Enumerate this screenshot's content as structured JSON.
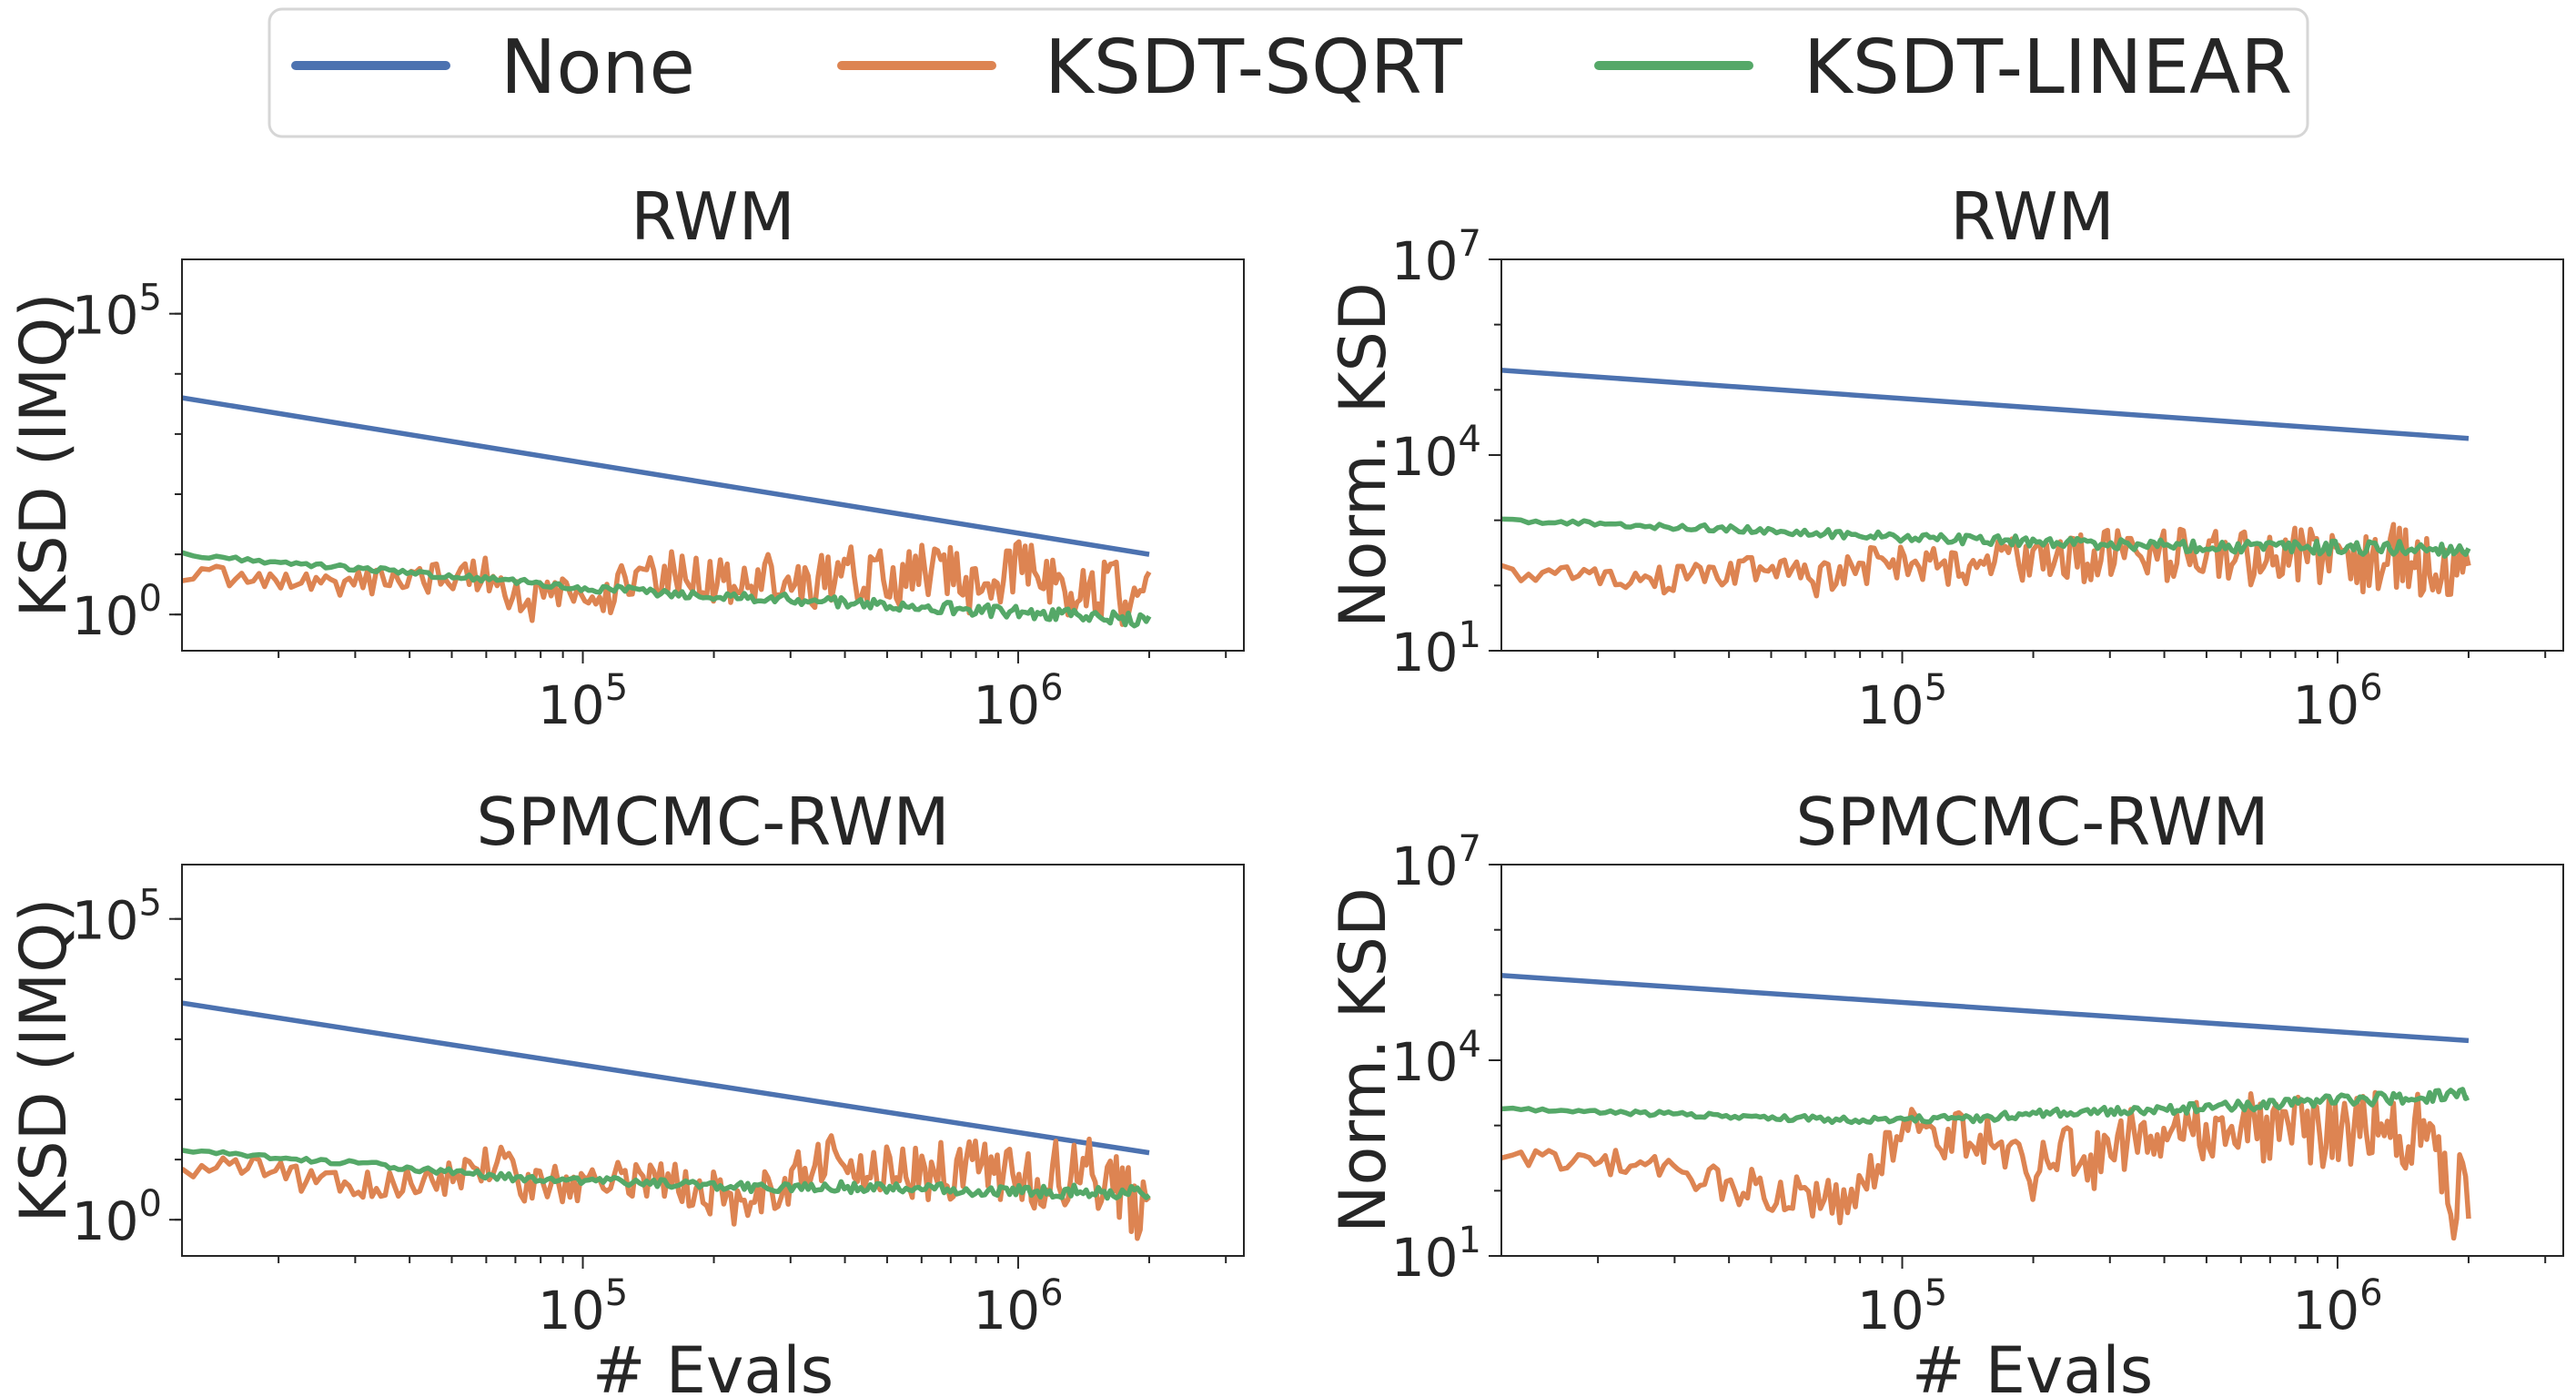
{
  "chart_data": {
    "legend": [
      {
        "name": "None",
        "color": "#4c72b0"
      },
      {
        "name": "KSDT-SQRT",
        "color": "#dd8452"
      },
      {
        "name": "KSDT-LINEAR",
        "color": "#55a868"
      }
    ],
    "xlabel": "# Evals",
    "x_ticks": [
      {
        "base": "10",
        "exp": "5",
        "value": 100000
      },
      {
        "base": "10",
        "exp": "6",
        "value": 1000000
      }
    ],
    "xlim": [
      12000,
      3300000
    ],
    "panels": [
      {
        "title": "RWM",
        "ylabel": "KSD (IMQ)",
        "ylim": [
          0.25,
          800000
        ],
        "y_ticks": [
          {
            "base": "10",
            "exp": "0",
            "value": 1
          },
          {
            "base": "10",
            "exp": "5",
            "value": 100000
          }
        ],
        "series": [
          {
            "name": "None",
            "x": [
              12000,
              2000000
            ],
            "y": [
              4000,
              10
            ]
          },
          {
            "name": "KSDT-LINEAR",
            "x": [
              12000,
              40000,
              100000,
              250000,
              500000,
              1000000,
              2000000
            ],
            "y": [
              10,
              5,
              2.8,
              1.9,
              1.5,
              1.1,
              0.8
            ],
            "noise": 0.1
          },
          {
            "name": "KSDT-SQRT",
            "x": [
              12000,
              25000,
              60000,
              75000,
              90000,
              110000,
              130000,
              160000,
              200000,
              250000,
              320000,
              400000,
              520000,
              650000,
              800000,
              1000000,
              1300000,
              1600000,
              2000000
            ],
            "y": [
              5,
              3.2,
              4.8,
              1.5,
              2.5,
              1.8,
              4,
              5,
              3.5,
              4.5,
              2.5,
              6,
              3.5,
              5.5,
              3,
              6,
              3.5,
              2.5,
              2
            ],
            "noise": 0.5
          }
        ]
      },
      {
        "title": "RWM",
        "ylabel": "Norm. KSD",
        "ylim": [
          10,
          10000000
        ],
        "y_ticks": [
          {
            "base": "10",
            "exp": "1",
            "value": 10
          },
          {
            "base": "10",
            "exp": "4",
            "value": 10000
          },
          {
            "base": "10",
            "exp": "7",
            "value": 10000000
          }
        ],
        "series": [
          {
            "name": "None",
            "x": [
              12000,
              2000000
            ],
            "y": [
              200000,
              18000
            ]
          },
          {
            "name": "KSDT-LINEAR",
            "x": [
              12000,
              40000,
              100000,
              250000,
              500000,
              1000000,
              2000000
            ],
            "y": [
              1000,
              750,
              550,
              450,
              400,
              380,
              360
            ],
            "noise": 0.1
          },
          {
            "name": "KSDT-SQRT",
            "x": [
              12000,
              30000,
              45000,
              55000,
              65000,
              80000,
              100000,
              130000,
              170000,
              220000,
              300000,
              400000,
              550000,
              700000,
              900000,
              1100000,
              1400000,
              1700000,
              2000000
            ],
            "y": [
              160,
              120,
              180,
              140,
              120,
              190,
              220,
              180,
              250,
              230,
              300,
              280,
              320,
              260,
              330,
              240,
              280,
              190,
              230
            ],
            "noise": 0.45
          }
        ]
      },
      {
        "title": "SPMCMC-RWM",
        "ylabel": "KSD (IMQ)",
        "ylim": [
          0.25,
          800000
        ],
        "y_ticks": [
          {
            "base": "10",
            "exp": "0",
            "value": 1
          },
          {
            "base": "10",
            "exp": "5",
            "value": 100000
          }
        ],
        "series": [
          {
            "name": "None",
            "x": [
              12000,
              2000000
            ],
            "y": [
              4000,
              13
            ]
          },
          {
            "name": "KSDT-LINEAR",
            "x": [
              12000,
              35000,
              70000,
              110000,
              160000,
              230000,
              400000,
              700000,
              1100000,
              1600000,
              2000000
            ],
            "y": [
              14,
              8,
              5,
              4.5,
              4,
              3.5,
              3.5,
              3.2,
              3,
              2.9,
              3
            ],
            "noise": 0.1
          },
          {
            "name": "KSDT-SQRT",
            "x": [
              12000,
              17000,
              24000,
              45000,
              64000,
              72000,
              85000,
              100000,
              120000,
              150000,
              190000,
              230000,
              300000,
              370000,
              420000,
              500000,
              650000,
              850000,
              1100000,
              1400000,
              1700000,
              1850000,
              2000000
            ],
            "y": [
              6,
              9,
              4,
              4,
              10,
              4,
              4,
              4.5,
              4,
              4,
              3,
              2,
              4,
              12,
              6,
              8,
              6,
              8,
              5,
              7,
              4,
              1.5,
              1.8
            ],
            "noise": 0.5
          }
        ]
      },
      {
        "title": "SPMCMC-RWM",
        "ylabel": "Norm. KSD",
        "ylim": [
          10,
          10000000
        ],
        "y_ticks": [
          {
            "base": "10",
            "exp": "1",
            "value": 10
          },
          {
            "base": "10",
            "exp": "4",
            "value": 10000
          },
          {
            "base": "10",
            "exp": "7",
            "value": 10000000
          }
        ],
        "series": [
          {
            "name": "None",
            "x": [
              12000,
              2000000
            ],
            "y": [
              200000,
              20000
            ]
          },
          {
            "name": "KSDT-LINEAR",
            "x": [
              12000,
              40000,
              80000,
              150000,
              230000,
              350000,
              600000,
              1000000,
              1500000,
              2000000
            ],
            "y": [
              1800,
              1400,
              1200,
              1300,
              1600,
              1700,
              2000,
              2400,
              2700,
              3000
            ],
            "noise": 0.08
          },
          {
            "name": "KSDT-SQRT",
            "x": [
              12000,
              18000,
              75000,
              100000,
              140000,
              165000,
              190000,
              230000,
              300000,
              360000,
              450000,
              600000,
              800000,
              1100000,
              1400000,
              1650000,
              1800000,
              2000000
            ],
            "y": [
              300,
              320,
              60,
              800,
              650,
              700,
              150,
              400,
              250,
              1200,
              900,
              1100,
              800,
              1000,
              700,
              1200,
              60,
              120
            ],
            "noise": 0.55
          }
        ]
      }
    ]
  }
}
